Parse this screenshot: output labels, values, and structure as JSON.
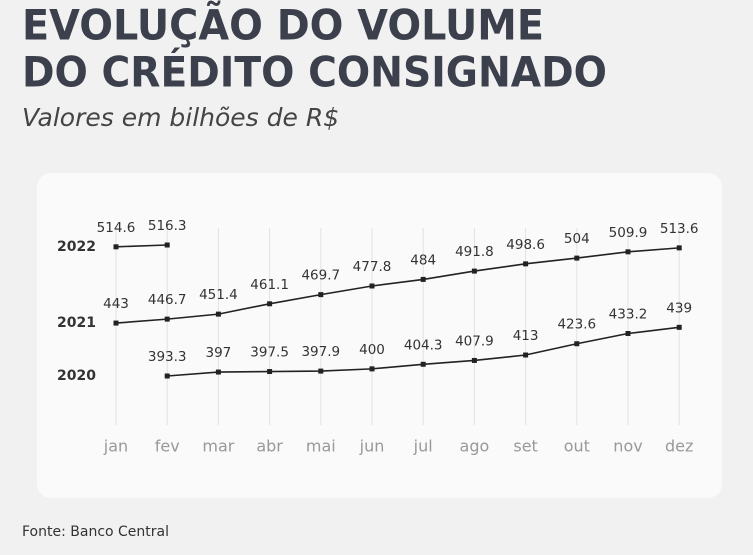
{
  "chart_data": {
    "type": "line",
    "title": [
      "EVOLUÇÃO DO VOLUME",
      "DO CRÉDITO CONSIGNADO"
    ],
    "subtitle": "Valores em bilhões de R$",
    "source": "Fonte: Banco Central",
    "categories": [
      "jan",
      "fev",
      "mar",
      "abr",
      "mai",
      "jun",
      "jul",
      "ago",
      "set",
      "out",
      "nov",
      "dez"
    ],
    "series": [
      {
        "name": "2022",
        "color": "#222222",
        "values": [
          514.6,
          516.3,
          null,
          null,
          null,
          null,
          null,
          null,
          null,
          null,
          null,
          null
        ]
      },
      {
        "name": "2021",
        "color": "#222222",
        "values": [
          443,
          446.7,
          451.4,
          461.1,
          469.7,
          477.8,
          484,
          491.8,
          498.6,
          504,
          509.9,
          513.6
        ]
      },
      {
        "name": "2020",
        "color": "#222222",
        "values": [
          null,
          393.3,
          397,
          397.5,
          397.9,
          400,
          404.3,
          407.9,
          413,
          423.6,
          433.2,
          439
        ]
      }
    ]
  }
}
